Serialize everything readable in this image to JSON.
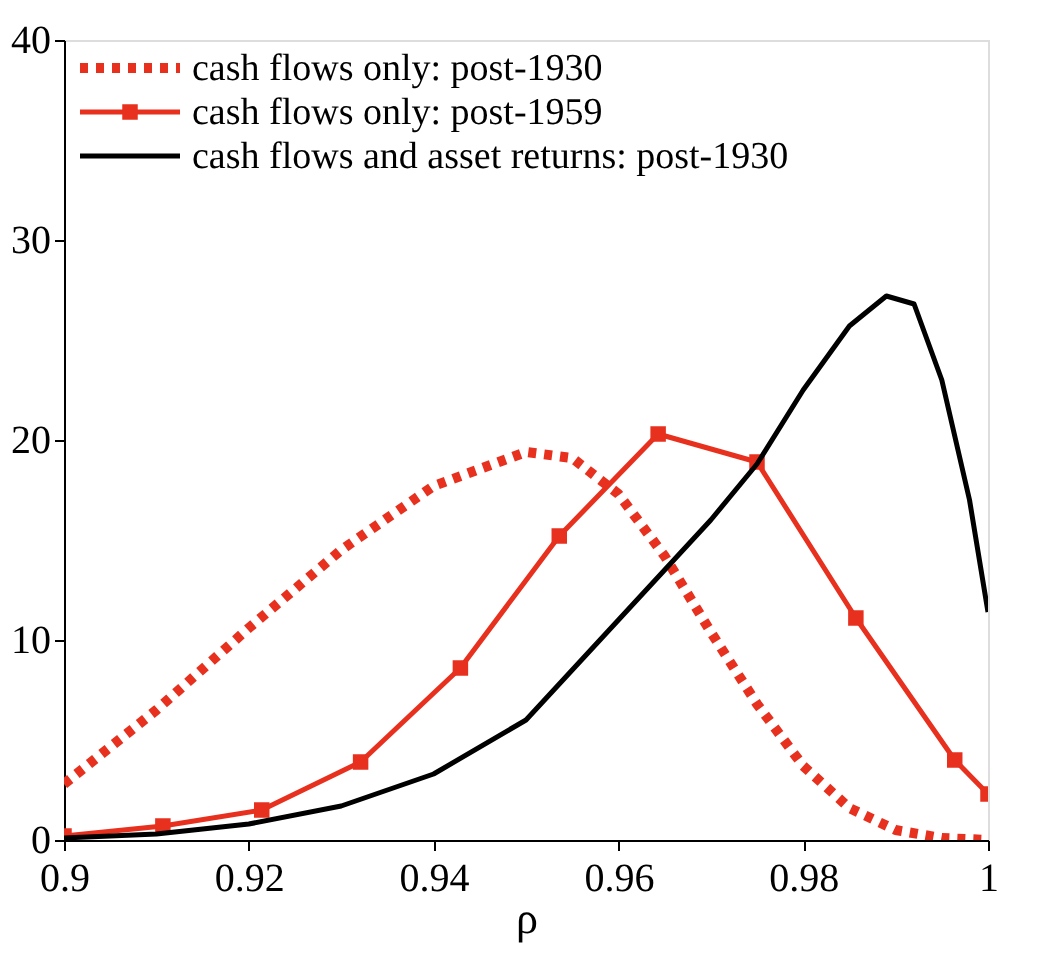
{
  "chart_data": {
    "type": "line",
    "xlabel": "ρ",
    "xlim": [
      0.9,
      1.0
    ],
    "ylim": [
      0,
      40
    ],
    "xticks": [
      0.9,
      0.92,
      0.94,
      0.96,
      0.98,
      {
        "value": 1.0,
        "label": "1"
      }
    ],
    "yticks": [
      0,
      10,
      20,
      30,
      40
    ],
    "grid": false,
    "legend": "top left",
    "series": [
      {
        "name": "cash flows only: post-1930",
        "color": "#e8301e",
        "line_style": "dotted",
        "marker": "none",
        "x": [
          0.9,
          0.91,
          0.92,
          0.93,
          0.94,
          0.95,
          0.955,
          0.96,
          0.965,
          0.97,
          0.975,
          0.98,
          0.985,
          0.99,
          0.995,
          1.0
        ],
        "values": [
          2.8,
          6.5,
          10.6,
          14.5,
          17.7,
          19.4,
          19.1,
          17.3,
          14.2,
          10.4,
          6.8,
          3.7,
          1.6,
          0.5,
          0.1,
          0
        ]
      },
      {
        "name": "cash flows only: post-1959",
        "color": "#e8301e",
        "line_style": "solid",
        "marker": "square",
        "x": [
          0.9,
          0.9107,
          0.9214,
          0.9321,
          0.9429,
          0.9536,
          0.9643,
          0.975,
          0.9857,
          0.9964,
          1.0
        ],
        "values": [
          0.2,
          0.7,
          1.5,
          3.9,
          8.6,
          15.2,
          20.3,
          18.9,
          11.1,
          4.0,
          2.3
        ]
      },
      {
        "name": "cash flows and asset returns: post-1930",
        "color": "#000000",
        "line_style": "solid",
        "marker": "none",
        "x": [
          0.9,
          0.91,
          0.92,
          0.93,
          0.94,
          0.95,
          0.96,
          0.97,
          0.975,
          0.98,
          0.985,
          0.989,
          0.992,
          0.995,
          0.998,
          1.0
        ],
        "values": [
          0.1,
          0.3,
          0.8,
          1.7,
          3.3,
          6.0,
          11.0,
          16.0,
          18.8,
          22.5,
          25.7,
          27.2,
          26.8,
          23.0,
          17.0,
          11.4
        ]
      }
    ]
  }
}
